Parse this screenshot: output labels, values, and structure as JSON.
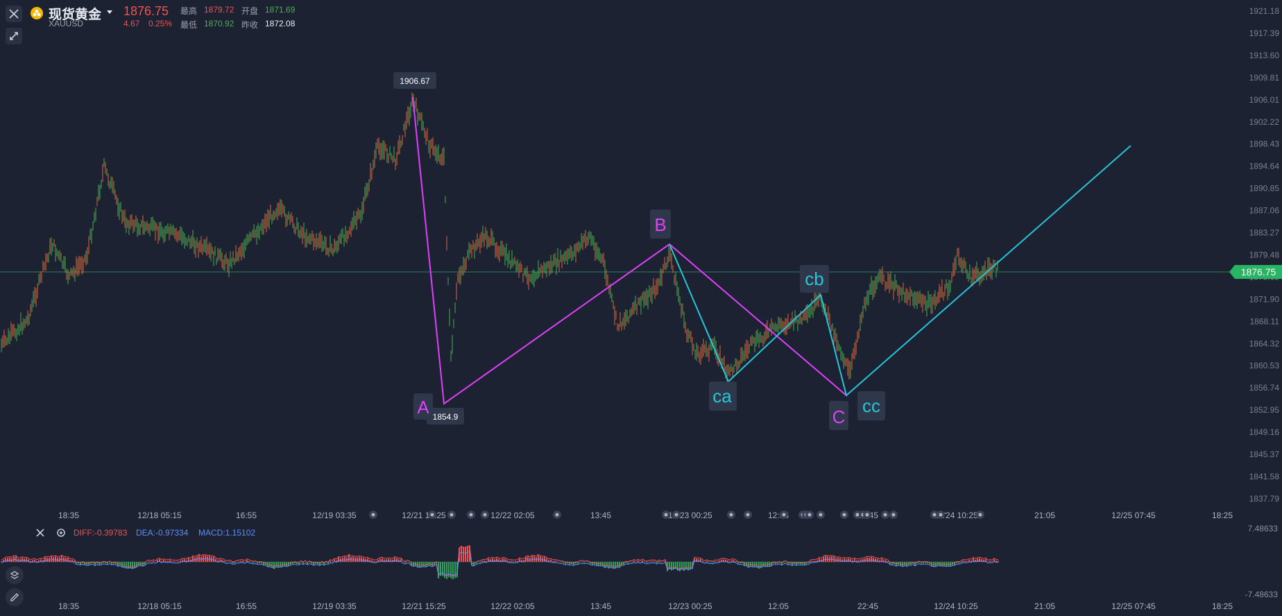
{
  "header": {
    "title": "现货黄金",
    "symbol": "XAUUSD",
    "price": "1876.75",
    "change": "4.67",
    "change_pct": "0.25%",
    "high_label": "最高",
    "high": "1879.72",
    "open_label": "开盘",
    "open": "1871.69",
    "low_label": "最低",
    "low": "1870.92",
    "prev_label": "昨收",
    "prev": "1872.08"
  },
  "current_price_tag": "1876.75",
  "y_axis_labels": [
    "1921.18",
    "1917.39",
    "1913.60",
    "1909.81",
    "1906.01",
    "1902.22",
    "1898.43",
    "1894.64",
    "1890.85",
    "1887.06",
    "1883.27",
    "1879.48",
    "1875.69",
    "1871.90",
    "1868.11",
    "1864.32",
    "1860.53",
    "1856.74",
    "1852.95",
    "1849.16",
    "1845.37",
    "1841.58",
    "1837.79"
  ],
  "time_labels": [
    "18:35",
    "12/18 05:15",
    "16:55",
    "12/19 03:35",
    "12/21 15:25",
    "12/22 02:05",
    "13:45",
    "12/23 00:25",
    "12:05",
    "22:45",
    "12/24 10:25",
    "21:05",
    "12/25 07:45",
    "18:25"
  ],
  "annotations": {
    "high_value": "1906.67",
    "low_value": "1854.9",
    "A": "A",
    "B": "B",
    "C": "C",
    "ca": "ca",
    "cb": "cb",
    "cc": "cc"
  },
  "macd": {
    "diff": "DIFF:-0.39783",
    "dea": "DEA:-0.97334",
    "macd": "MACD:1.15102",
    "y_top": "7.48633",
    "y_bottom": "-7.48633"
  },
  "icons": [
    "close-icon",
    "expand-icon",
    "settings-icon",
    "pencil-icon",
    "gold-coin-icon",
    "chevron-down-icon"
  ],
  "colors": {
    "up": "#ef5350",
    "down": "#4caf50",
    "wave_main": "#e040fb",
    "wave_sub": "#26c6da",
    "background": "#1c2232"
  }
}
